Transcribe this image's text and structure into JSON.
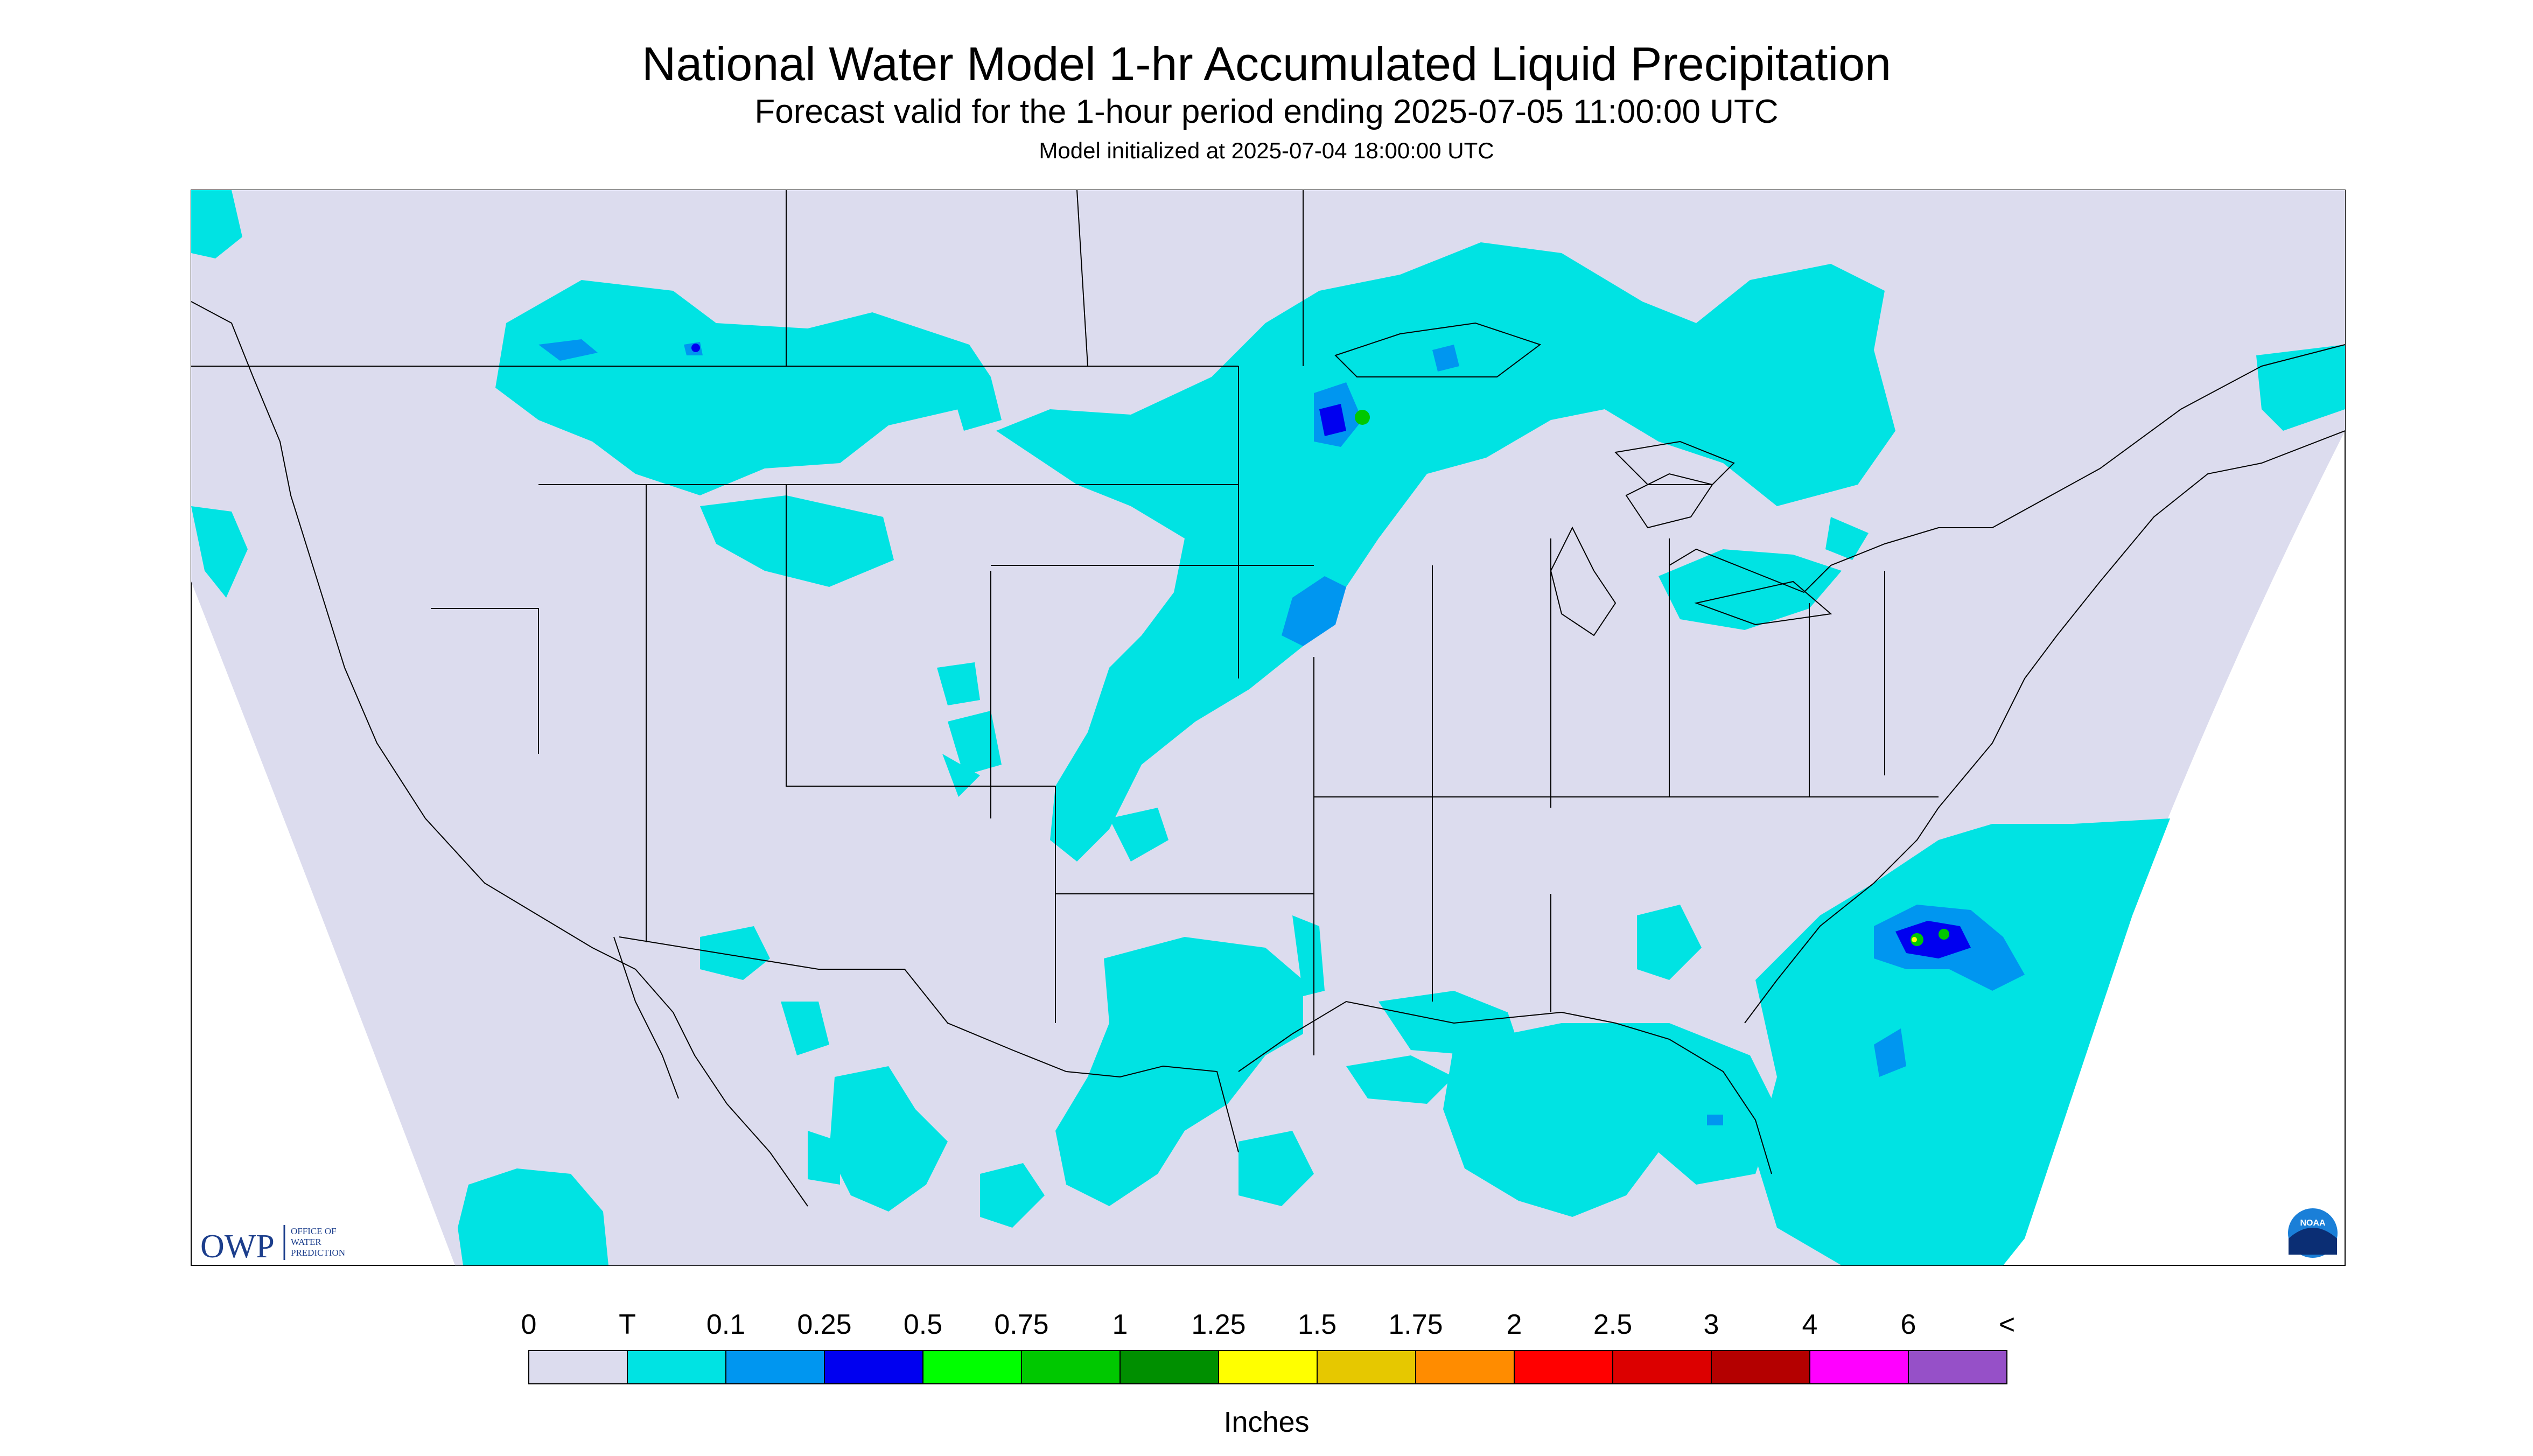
{
  "header": {
    "title": "National Water Model 1-hr Accumulated Liquid Precipitation",
    "subtitle": "Forecast valid for the 1-hour period ending 2025-07-05 11:00:00 UTC",
    "init": "Model initialized at 2025-07-04 18:00:00 UTC"
  },
  "logos": {
    "owp_letters": "OWP",
    "owp_line1": "OFFICE OF",
    "owp_line2": "WATER",
    "owp_line3": "PREDICTION",
    "noaa": "NOAA"
  },
  "colors": {
    "background": "#dcdcee",
    "trace": "#00e3e3",
    "light": "#0096f0",
    "medium": "#0000f0",
    "green": "#00c800",
    "yellow": "#ffff00"
  },
  "legend": {
    "labels": [
      "0",
      "T",
      "0.1",
      "0.25",
      "0.5",
      "0.75",
      "1",
      "1.25",
      "1.5",
      "1.75",
      "2",
      "2.5",
      "3",
      "4",
      "6",
      "<"
    ],
    "colors": [
      "#dcdcee",
      "#00e3e3",
      "#0096f0",
      "#0000f0",
      "#00ff00",
      "#00c800",
      "#008f00",
      "#ffff00",
      "#e6c800",
      "#ff8c00",
      "#ff0000",
      "#dc0000",
      "#b40000",
      "#ff00ff",
      "#9650c8"
    ],
    "units": "Inches"
  }
}
